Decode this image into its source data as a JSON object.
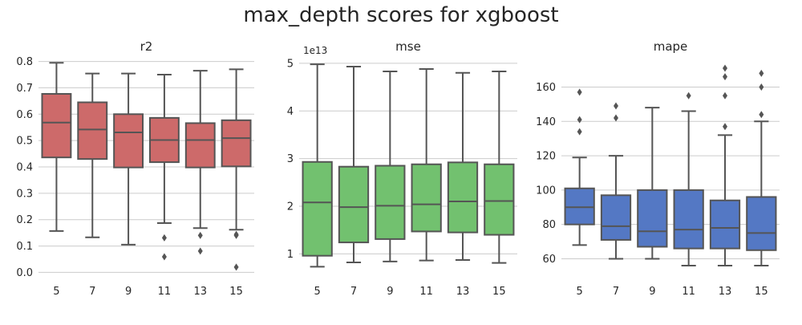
{
  "figure": {
    "title": "max_depth scores for xgboost"
  },
  "chart_data": [
    {
      "type": "box",
      "title": "r2",
      "xlabel": "",
      "ylabel": "",
      "categories": [
        "5",
        "7",
        "9",
        "11",
        "13",
        "15"
      ],
      "ylim": [
        -0.02,
        0.82
      ],
      "yticks": [
        0.0,
        0.1,
        0.2,
        0.3,
        0.4,
        0.5,
        0.6,
        0.7,
        0.8
      ],
      "ytick_labels": [
        "0.0",
        "0.1",
        "0.2",
        "0.3",
        "0.4",
        "0.5",
        "0.6",
        "0.7",
        "0.8"
      ],
      "offset_label": "",
      "color": "#cd6a6a",
      "grid": true,
      "boxes": [
        {
          "whisker_low": 0.157,
          "q1": 0.436,
          "median": 0.568,
          "q3": 0.677,
          "whisker_high": 0.795,
          "outliers": []
        },
        {
          "whisker_low": 0.133,
          "q1": 0.43,
          "median": 0.542,
          "q3": 0.645,
          "whisker_high": 0.754,
          "outliers": []
        },
        {
          "whisker_low": 0.105,
          "q1": 0.398,
          "median": 0.531,
          "q3": 0.6,
          "whisker_high": 0.754,
          "outliers": []
        },
        {
          "whisker_low": 0.187,
          "q1": 0.418,
          "median": 0.502,
          "q3": 0.586,
          "whisker_high": 0.75,
          "outliers": [
            0.131,
            0.059
          ]
        },
        {
          "whisker_low": 0.168,
          "q1": 0.398,
          "median": 0.502,
          "q3": 0.566,
          "whisker_high": 0.765,
          "outliers": [
            0.14,
            0.081
          ]
        },
        {
          "whisker_low": 0.162,
          "q1": 0.402,
          "median": 0.509,
          "q3": 0.577,
          "whisker_high": 0.77,
          "outliers": [
            0.144,
            0.14,
            0.02
          ]
        }
      ]
    },
    {
      "type": "box",
      "title": "mse",
      "xlabel": "",
      "ylabel": "",
      "categories": [
        "5",
        "7",
        "9",
        "11",
        "13",
        "15"
      ],
      "ylim": [
        0.5,
        5.15
      ],
      "yticks": [
        1,
        2,
        3,
        4,
        5
      ],
      "ytick_labels": [
        "1",
        "2",
        "3",
        "4",
        "5"
      ],
      "offset_label": "1e13",
      "color": "#72c16f",
      "grid": true,
      "boxes": [
        {
          "whisker_low": 0.73,
          "q1": 0.96,
          "median": 2.08,
          "q3": 2.93,
          "whisker_high": 4.98,
          "outliers": []
        },
        {
          "whisker_low": 0.82,
          "q1": 1.24,
          "median": 1.98,
          "q3": 2.83,
          "whisker_high": 4.93,
          "outliers": []
        },
        {
          "whisker_low": 0.84,
          "q1": 1.31,
          "median": 2.01,
          "q3": 2.85,
          "whisker_high": 4.83,
          "outliers": []
        },
        {
          "whisker_low": 0.86,
          "q1": 1.47,
          "median": 2.04,
          "q3": 2.88,
          "whisker_high": 4.88,
          "outliers": []
        },
        {
          "whisker_low": 0.87,
          "q1": 1.45,
          "median": 2.1,
          "q3": 2.92,
          "whisker_high": 4.8,
          "outliers": []
        },
        {
          "whisker_low": 0.81,
          "q1": 1.4,
          "median": 2.11,
          "q3": 2.88,
          "whisker_high": 4.83,
          "outliers": []
        }
      ]
    },
    {
      "type": "box",
      "title": "mape",
      "xlabel": "",
      "ylabel": "",
      "categories": [
        "5",
        "7",
        "9",
        "11",
        "13",
        "15"
      ],
      "ylim": [
        49,
        178
      ],
      "yticks": [
        60,
        80,
        100,
        120,
        140,
        160
      ],
      "ytick_labels": [
        "60",
        "80",
        "100",
        "120",
        "140",
        "160"
      ],
      "offset_label": "",
      "color": "#5478c4",
      "grid": true,
      "boxes": [
        {
          "whisker_low": 68,
          "q1": 80,
          "median": 90,
          "q3": 101,
          "whisker_high": 119,
          "outliers": [
            157,
            141,
            134
          ]
        },
        {
          "whisker_low": 60,
          "q1": 71,
          "median": 79,
          "q3": 97,
          "whisker_high": 120,
          "outliers": [
            149,
            142
          ]
        },
        {
          "whisker_low": 60,
          "q1": 67,
          "median": 76,
          "q3": 100,
          "whisker_high": 148,
          "outliers": []
        },
        {
          "whisker_low": 56,
          "q1": 66,
          "median": 77,
          "q3": 100,
          "whisker_high": 146,
          "outliers": [
            155
          ]
        },
        {
          "whisker_low": 56,
          "q1": 66,
          "median": 78,
          "q3": 94,
          "whisker_high": 132,
          "outliers": [
            171,
            166,
            155,
            137
          ]
        },
        {
          "whisker_low": 56,
          "q1": 65,
          "median": 75,
          "q3": 96,
          "whisker_high": 140,
          "outliers": [
            168,
            160,
            144
          ]
        }
      ]
    }
  ]
}
